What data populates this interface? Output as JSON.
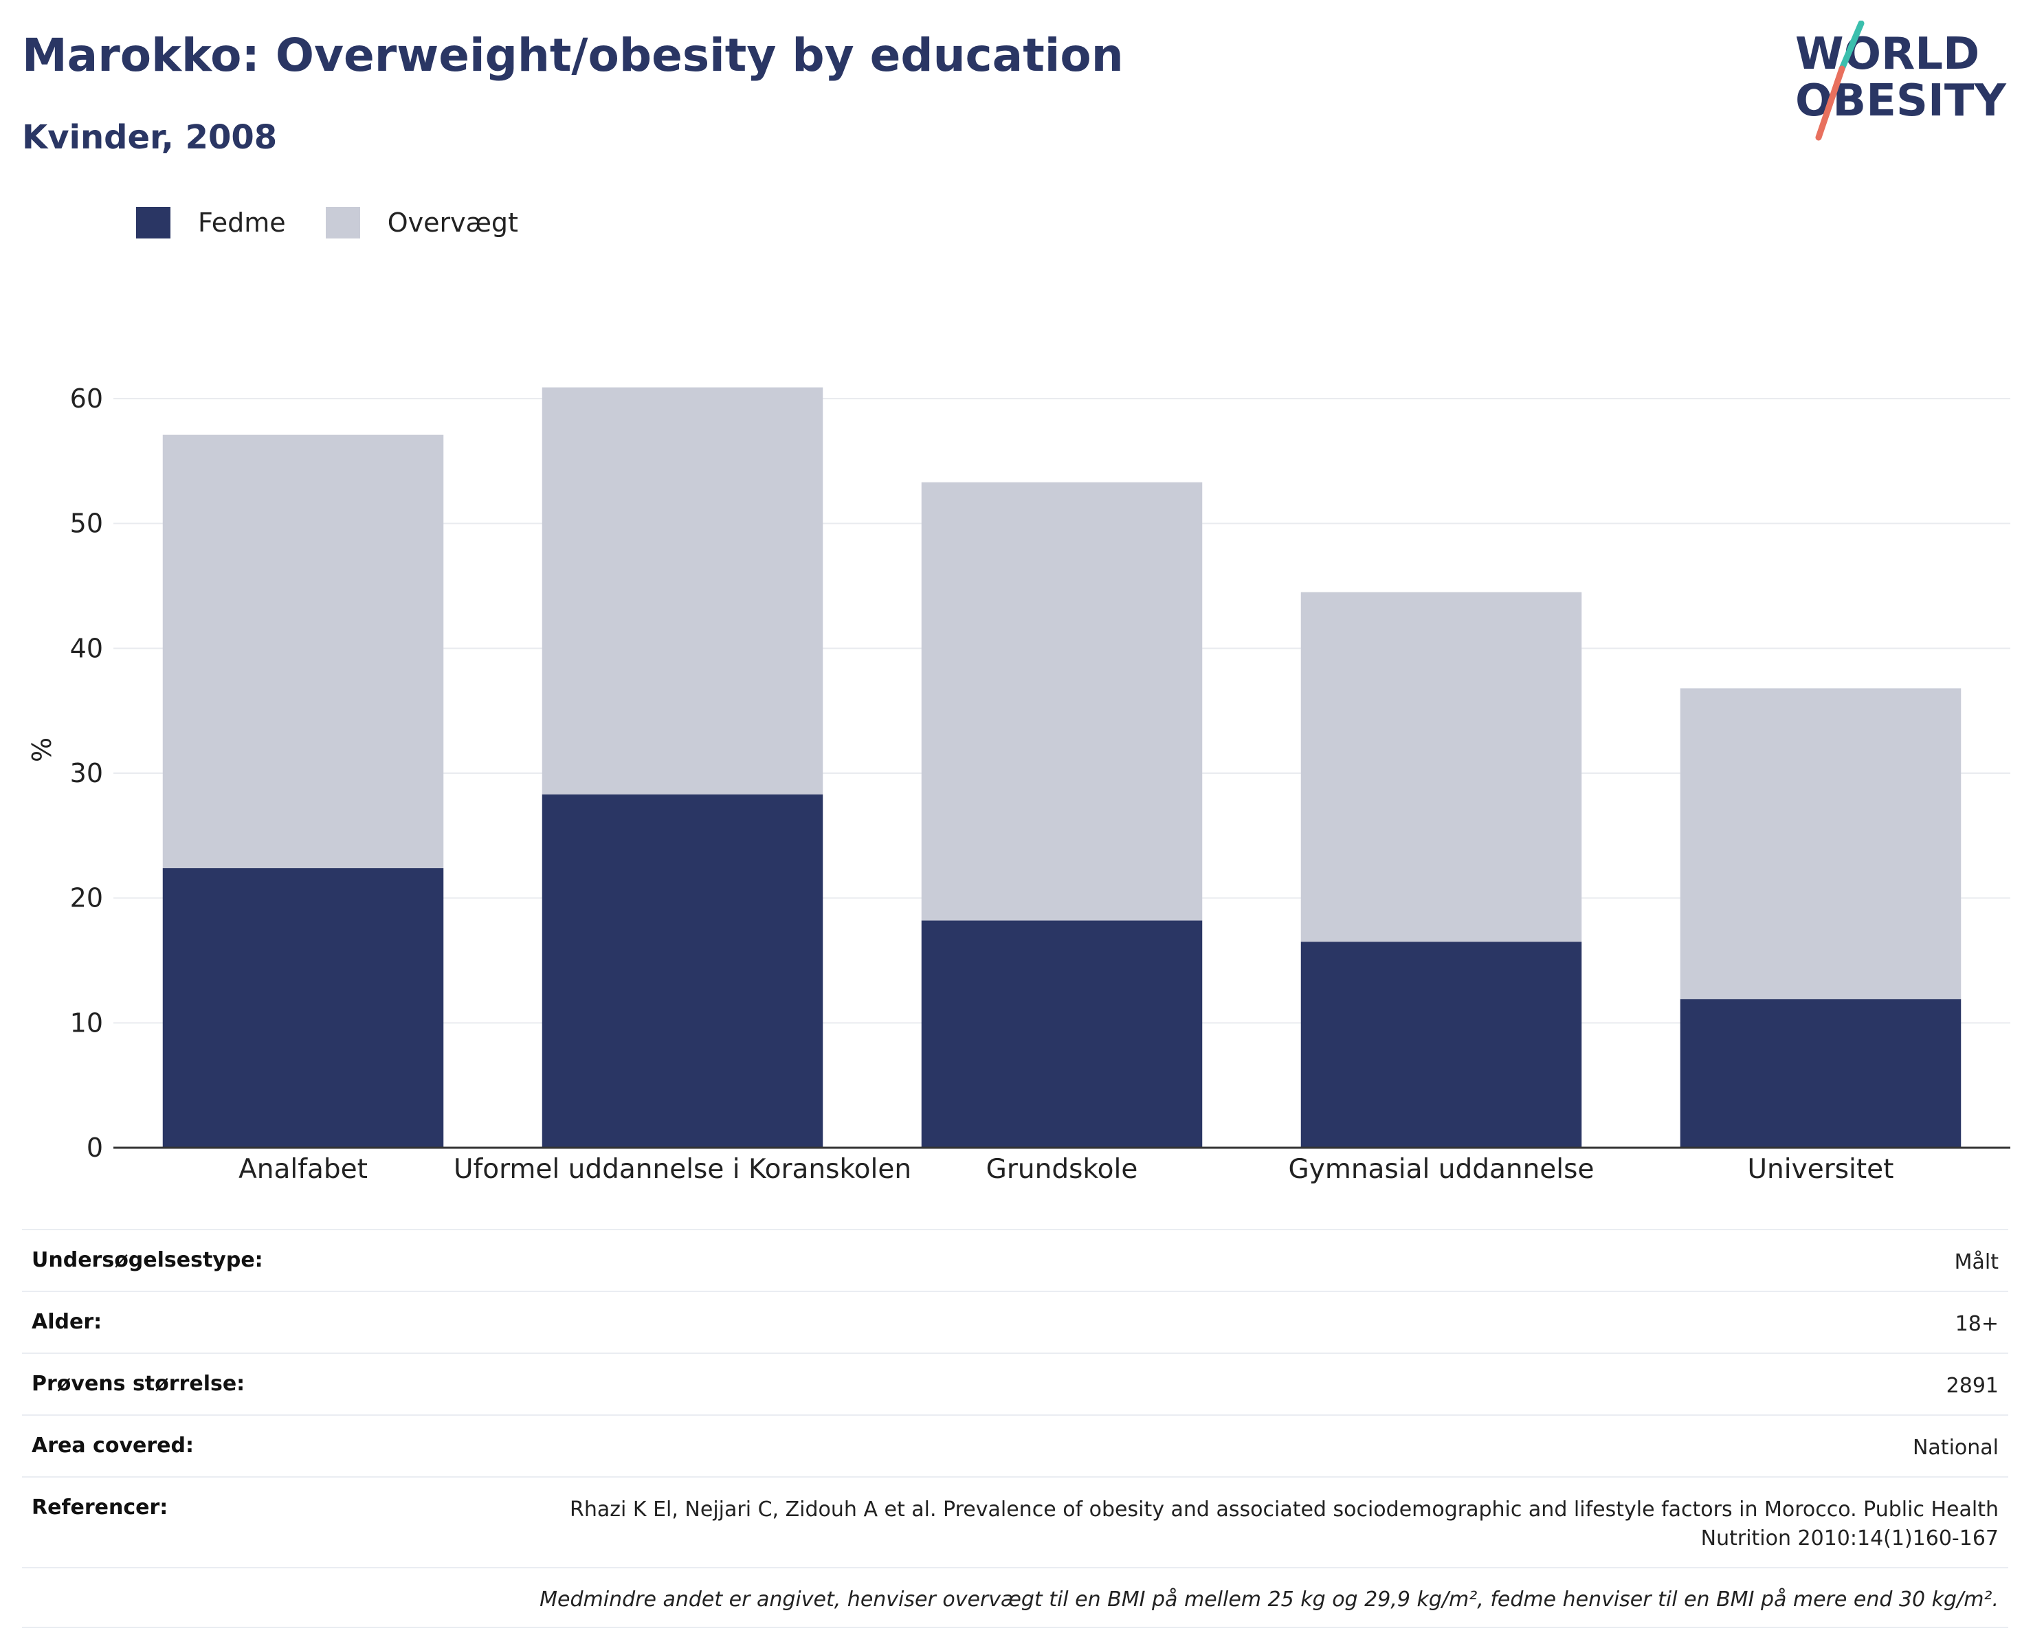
{
  "header": {
    "title": "Marokko: Overweight/obesity by education",
    "subtitle": "Kvinder, 2008"
  },
  "logo": {
    "line1": "WORLD",
    "line2": "OBESITY",
    "colors": {
      "text": "#2a3664",
      "slash_top": "#3bbfad",
      "slash_bottom": "#e8705e"
    }
  },
  "colors": {
    "obesity": "#2a3664",
    "overweight": "#c9ccd7",
    "grid": "#e9ebef",
    "axis": "#333333"
  },
  "chart_data": {
    "type": "bar",
    "stacked": true,
    "categories": [
      "Analfabet",
      "Uformel uddannelse i Koranskolen",
      "Grundskole",
      "Gymnasial uddannelse",
      "Universitet"
    ],
    "series": [
      {
        "name": "Fedme",
        "values": [
          22.4,
          28.3,
          18.2,
          16.5,
          11.9
        ]
      },
      {
        "name": "Overvægt",
        "values": [
          34.7,
          32.6,
          35.1,
          28.0,
          24.9
        ]
      }
    ],
    "title": "Marokko: Overweight/obesity by education",
    "ylabel": "%",
    "ylim": [
      0,
      65
    ],
    "yticks": [
      0,
      10,
      20,
      30,
      40,
      50,
      60
    ],
    "grid": true,
    "legend_position": "top-left"
  },
  "meta": {
    "rows": [
      {
        "label": "Undersøgelsestype:",
        "value": "Målt"
      },
      {
        "label": "Alder:",
        "value": "18+"
      },
      {
        "label": "Prøvens størrelse:",
        "value": "2891"
      },
      {
        "label": "Area covered:",
        "value": "National"
      },
      {
        "label": "Referencer:",
        "value": "Rhazi K El, Nejjari C, Zidouh A et al. Prevalence of obesity and associated sociodemographic and lifestyle factors in Morocco. Public Health Nutrition 2010:14(1)160-167"
      }
    ],
    "note": "Medmindre andet er angivet, henviser overvægt til en BMI på mellem 25 kg og 29,9 kg/m², fedme henviser til en BMI på mere end 30 kg/m²."
  }
}
